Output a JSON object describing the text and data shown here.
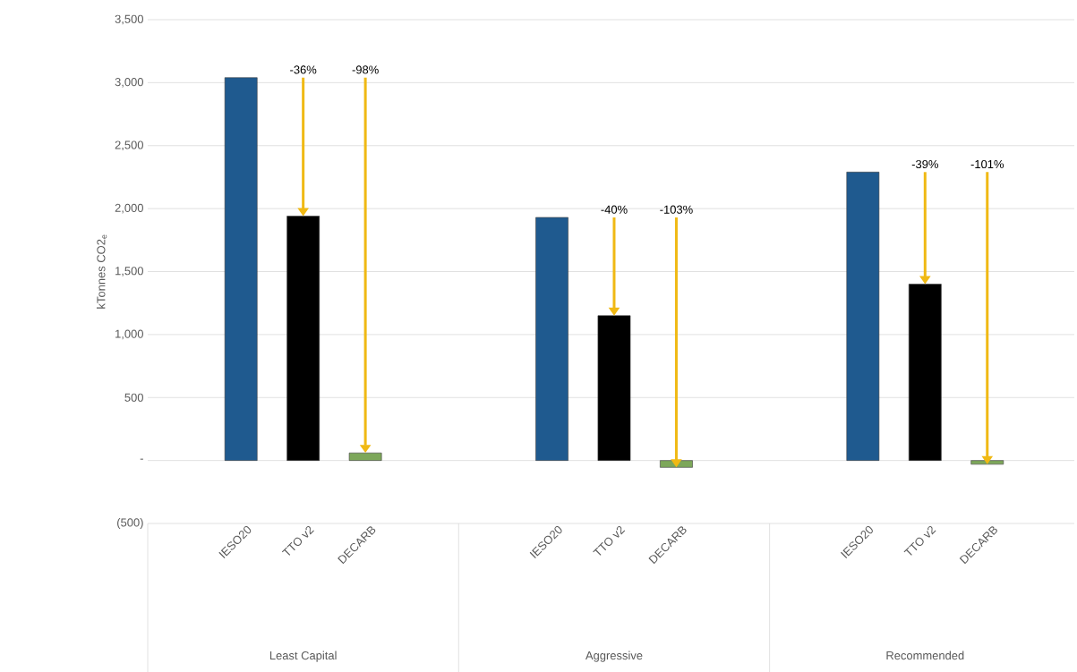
{
  "chart_data": {
    "type": "bar",
    "ylabel": "kTonnes CO2$_{e}$",
    "categories": [
      "IESO20",
      "TTO v2",
      "DECARB",
      null,
      null,
      "IESO20",
      "TTO v2",
      "DECARB",
      null,
      null,
      "IESO20",
      "TTO v2",
      "DECARB"
    ],
    "values": [
      3040,
      1940,
      60,
      null,
      null,
      1930,
      1150,
      -55,
      null,
      null,
      2290,
      1400,
      -30
    ],
    "colors": [
      "#1f5a8f",
      "#000000",
      "#7da75a",
      null,
      null,
      "#1f5a8f",
      "#000000",
      "#7da75a",
      null,
      null,
      "#1f5a8f",
      "#000000",
      "#7da75a"
    ],
    "ylim": [
      -500,
      3500
    ],
    "yticks": [
      {
        "value": -500,
        "label": "(500)"
      },
      {
        "value": 0,
        "label": "-"
      },
      500,
      {
        "value": 1000,
        "label": "1,000"
      },
      {
        "value": 1500,
        "label": "1,500"
      },
      {
        "value": 2000,
        "label": "2,000"
      },
      {
        "value": 2500,
        "label": "2,500"
      },
      {
        "value": 3000,
        "label": "3,000"
      },
      {
        "value": 3500,
        "label": "3,500"
      }
    ],
    "grid": "y",
    "annotations": [
      "Least Capital",
      "Aggressive",
      "Recommended",
      {
        "text": "-36%",
        "y": 1940
      },
      {
        "text": "-98%",
        "y": 60
      },
      {
        "text": "-40%",
        "y": 1150
      },
      {
        "text": "-103%",
        "y": -55
      },
      {
        "text": "-39%",
        "y": 1400
      },
      {
        "text": "-101%",
        "y": -30
      }
    ]
  }
}
